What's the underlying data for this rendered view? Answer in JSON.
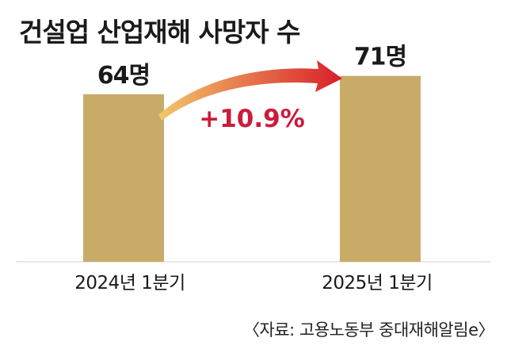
{
  "title": "건설업 산업재해 사망자 수",
  "source": "〈자료: 고용노동부 중대재해알림e〉",
  "chart_data": {
    "type": "bar",
    "title": "건설업 산업재해 사망자 수",
    "categories": [
      "2024년 1분기",
      "2025년 1분기"
    ],
    "values": [
      64,
      71
    ],
    "value_labels": [
      "64명",
      "71명"
    ],
    "unit": "명",
    "change_label": "+10.9%",
    "ylim": [
      0,
      80
    ],
    "grid": false,
    "colors": {
      "bar": "#c9ab68",
      "arrow_start": "#f2c76a",
      "arrow_end": "#d81f2a",
      "change_text": "#cc1b3d",
      "baseline": "#d8cfc0"
    }
  }
}
